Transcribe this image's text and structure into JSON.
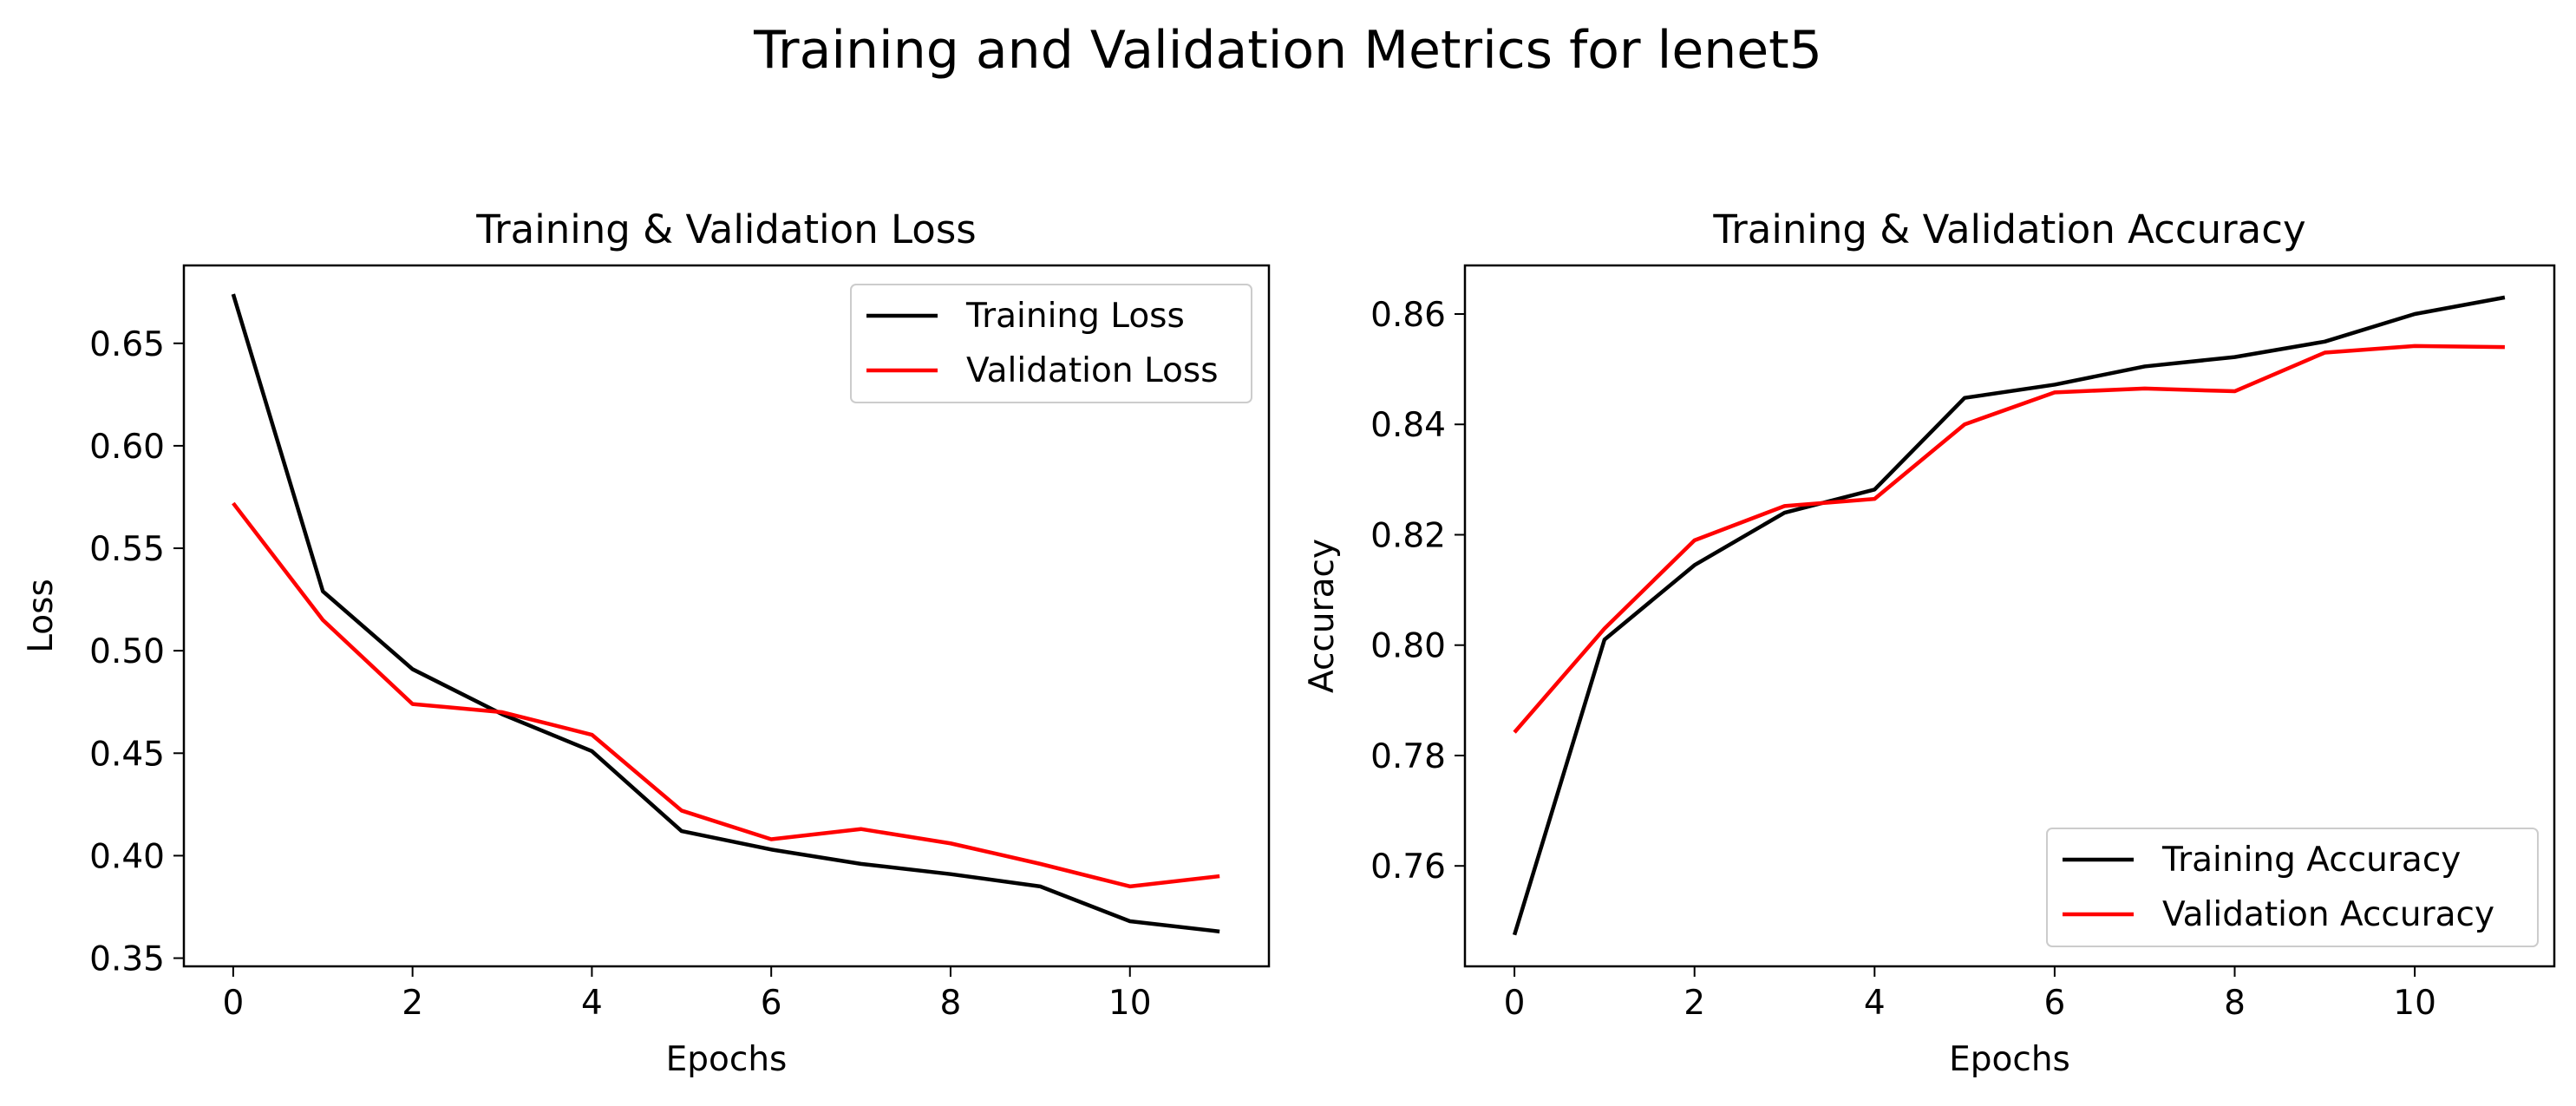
{
  "figure_title": "Training and Validation Metrics for lenet5",
  "colors": {
    "training": "#000000",
    "validation": "#ff0000",
    "legend_frame": "#cccccc"
  },
  "chart_data": [
    {
      "type": "line",
      "title": "Training & Validation Loss",
      "xlabel": "Epochs",
      "ylabel": "Loss",
      "x": [
        0,
        1,
        2,
        3,
        4,
        5,
        6,
        7,
        8,
        9,
        10,
        11
      ],
      "xlim": [
        -0.55,
        11.55
      ],
      "ylim": [
        0.346,
        0.688
      ],
      "xticks": [
        0,
        2,
        4,
        6,
        8,
        10
      ],
      "xtick_labels": [
        "0",
        "2",
        "4",
        "6",
        "8",
        "10"
      ],
      "yticks": [
        0.35,
        0.4,
        0.45,
        0.5,
        0.55,
        0.6,
        0.65
      ],
      "ytick_labels": [
        "0.35",
        "0.40",
        "0.45",
        "0.50",
        "0.55",
        "0.60",
        "0.65"
      ],
      "legend_position": "upper right",
      "grid": false,
      "series": [
        {
          "name": "Training Loss",
          "color": "#000000",
          "values": [
            0.674,
            0.529,
            0.491,
            0.469,
            0.451,
            0.412,
            0.403,
            0.396,
            0.391,
            0.385,
            0.368,
            0.363
          ]
        },
        {
          "name": "Validation Loss",
          "color": "#ff0000",
          "values": [
            0.572,
            0.515,
            0.474,
            0.47,
            0.459,
            0.422,
            0.408,
            0.413,
            0.406,
            0.396,
            0.385,
            0.39
          ]
        }
      ]
    },
    {
      "type": "line",
      "title": "Training & Validation Accuracy",
      "xlabel": "Epochs",
      "ylabel": "Accuracy",
      "x": [
        0,
        1,
        2,
        3,
        4,
        5,
        6,
        7,
        8,
        9,
        10,
        11
      ],
      "xlim": [
        -0.55,
        11.55
      ],
      "ylim": [
        0.7418,
        0.8688
      ],
      "xticks": [
        0,
        2,
        4,
        6,
        8,
        10
      ],
      "xtick_labels": [
        "0",
        "2",
        "4",
        "6",
        "8",
        "10"
      ],
      "yticks": [
        0.76,
        0.78,
        0.8,
        0.82,
        0.84,
        0.86
      ],
      "ytick_labels": [
        "0.76",
        "0.78",
        "0.80",
        "0.82",
        "0.84",
        "0.86"
      ],
      "legend_position": "lower right",
      "grid": false,
      "series": [
        {
          "name": "Training Accuracy",
          "color": "#000000",
          "values": [
            0.7475,
            0.801,
            0.8145,
            0.824,
            0.8282,
            0.8448,
            0.8472,
            0.8505,
            0.8522,
            0.855,
            0.86,
            0.863
          ]
        },
        {
          "name": "Validation Accuracy",
          "color": "#ff0000",
          "values": [
            0.7842,
            0.803,
            0.819,
            0.8252,
            0.8265,
            0.84,
            0.8458,
            0.8465,
            0.846,
            0.853,
            0.8542,
            0.854
          ]
        }
      ]
    }
  ]
}
